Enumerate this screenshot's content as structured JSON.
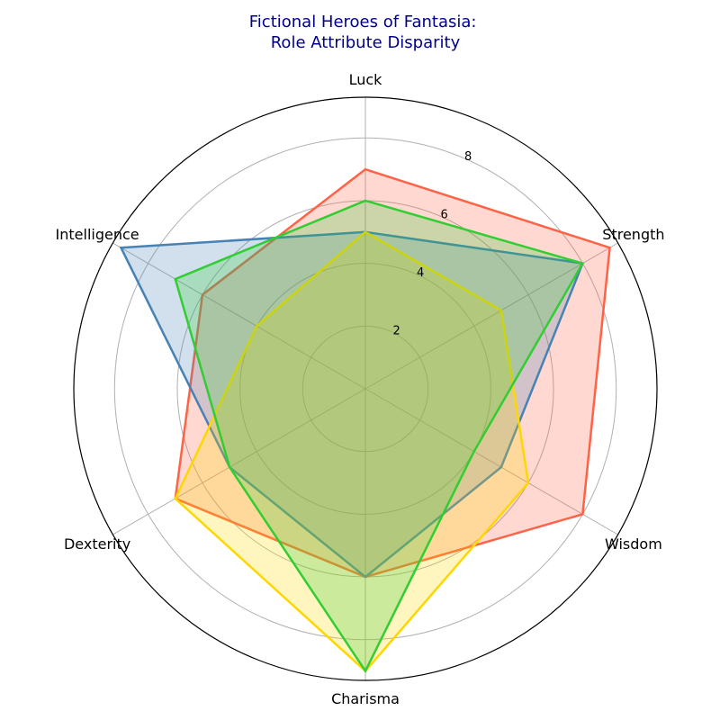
{
  "chart_data": {
    "type": "radar",
    "title": "Fictional Heroes of Fantasia:\nRole Attribute Disparity",
    "axes": [
      "Luck",
      "Strength",
      "Wisdom",
      "Charisma",
      "Dexterity",
      "Intelligence"
    ],
    "rlim": [
      0,
      9.3
    ],
    "rticks": [
      2,
      4,
      6,
      8
    ],
    "grid": true,
    "series": [
      {
        "color": "#ff6347",
        "fill": "#ff6347",
        "values": [
          7,
          9,
          8,
          6,
          7,
          6
        ]
      },
      {
        "color": "#4682b4",
        "fill": "#4682b4",
        "values": [
          5,
          8,
          5,
          6,
          5,
          9
        ]
      },
      {
        "color": "#ffd700",
        "fill": "#ffd700",
        "values": [
          5,
          5,
          6,
          9,
          7,
          4
        ]
      },
      {
        "color": "#32cd32",
        "fill": "#32cd32",
        "values": [
          6,
          8,
          4,
          9,
          5,
          7
        ]
      }
    ]
  }
}
